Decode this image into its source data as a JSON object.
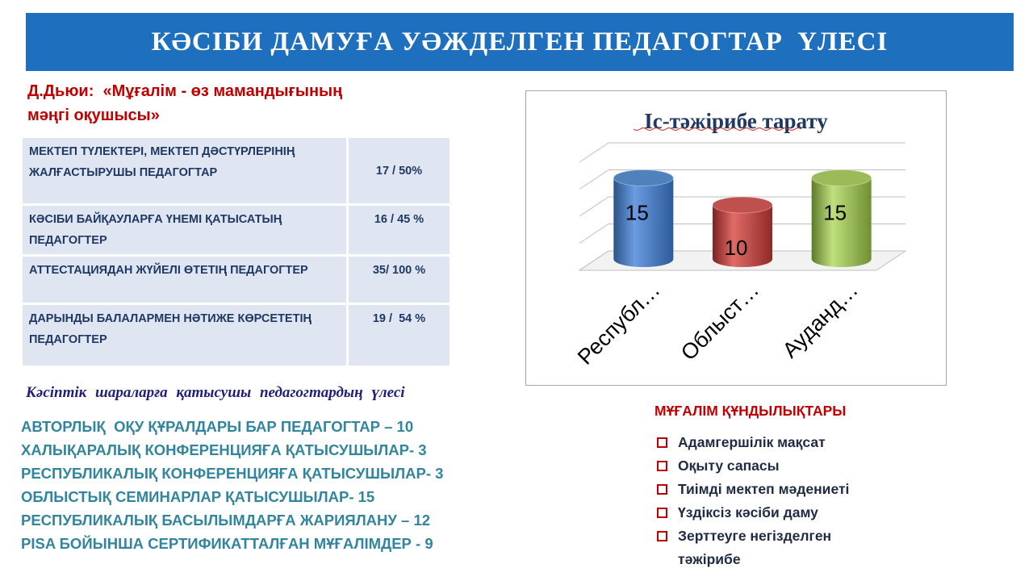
{
  "header": {
    "title": "КӘСІБИ ДАМУҒА УӘЖДЕЛГЕН ПЕДАГОГТАР  ҮЛЕСІ"
  },
  "quote": {
    "line1": "Д.Дьюи:  «Мұғалім - өз мамандығының",
    "line2": "мәңгі оқушысы»"
  },
  "metrics": [
    {
      "label": "МЕКТЕП ТҮЛЕКТЕРІ, МЕКТЕП ДӘСТҮРЛЕРІНІҢ  ЖАЛҒАСТЫРУШЫ ПЕДАГОГТАР",
      "value": "17 / 50%"
    },
    {
      "label": "КӘСІБИ БАЙҚАУЛАРҒА ҮНЕМІ ҚАТЫСАТЫҢ ПЕДАГОГТЕР",
      "value": "16 / 45 %"
    },
    {
      "label": "АТТЕСТАЦИЯДАН ЖҮЙЕЛІ ӨТЕТІҢ ПЕДАГОГТЕР",
      "value": "35/ 100 %"
    },
    {
      "label": "ДАРЫНДЫ БАЛАЛАРМЕН НӘТИЖЕ КӨРСЕТЕТІҢ  ПЕДАГОГТЕР",
      "value": "19 /  54 %"
    }
  ],
  "participation": {
    "heading": "Кәсіптік шараларға қатысушы педагогтардың үлесі",
    "items": [
      "АВТОРЛЫҚ  ОҚУ ҚҰРАЛДАРЫ БАР ПЕДАГОГТАР – 10",
      "ХАЛЫҚАРАЛЫҚ КОНФЕРЕНЦИЯҒА ҚАТЫСУШЫЛАР- 3",
      "РЕСПУБЛИКАЛЫҚ КОНФЕРЕНЦИЯҒА ҚАТЫСУШЫЛАР- 3",
      "ОБЛЫСТЫҚ СЕМИНАРЛАР ҚАТЫСУШЫЛАР- 15",
      "РЕСПУБЛИКАЛЫҚ БАСЫЛЫМДАРҒА ЖАРИЯЛАНУ – 12",
      "PISA БОЙЫНША СЕРТИФИКАТТАЛҒАН МҰҒАЛІМДЕР - 9"
    ]
  },
  "chart_data": {
    "type": "bar",
    "title": "Іс-тәжірибе тарату",
    "categories": [
      "Республ…",
      "Облыст…",
      "Ауданд…"
    ],
    "values": [
      15,
      10,
      15
    ],
    "colors": [
      "#4f81bd",
      "#c0504d",
      "#9bbb59"
    ],
    "ylim": [
      0,
      20
    ],
    "grid": true,
    "legend": "none",
    "style": "3d-cylinder"
  },
  "teacher_values": {
    "heading": "МҰҒАЛІМ ҚҰНДЫЛЫҚТАРЫ",
    "items": [
      "Адамгершілік мақсат",
      "Оқыту сапасы",
      "Тиімді мектеп мәдениеті",
      "Үздіксіз кәсіби даму",
      "Зерттеуге негізделген тәжірибе"
    ]
  }
}
